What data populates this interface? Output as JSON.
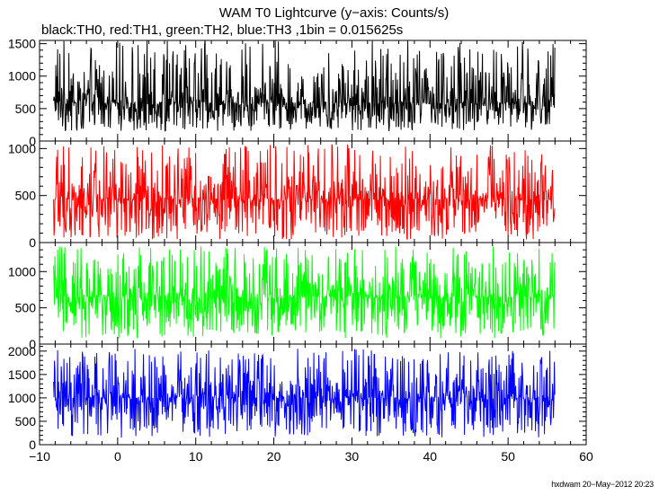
{
  "header": {
    "title": "WAM T0 Lightcurve (y−axis: Counts/s)",
    "subtitle": "black:TH0, red:TH1, green:TH2, blue:TH3 ,1bin = 0.015625s"
  },
  "footer": {
    "stamp": "hxdwam 20−May−2012 20:23"
  },
  "chart_data": [
    {
      "type": "line",
      "title": "",
      "ylabel": "",
      "xlabel": "",
      "color": "#000000",
      "legend_entry": "black:TH0",
      "xlim": [
        -10,
        60
      ],
      "ylim": [
        0,
        1550
      ],
      "yticks": [
        0,
        500,
        1000,
        1500
      ],
      "ytick_labels": [
        "0",
        "500",
        "1000",
        "1500"
      ],
      "series": [
        {
          "x_range": [
            -8.2,
            56.0
          ],
          "baseline": 590,
          "noise_low": 150,
          "noise_high": 1550
        }
      ]
    },
    {
      "type": "line",
      "title": "",
      "ylabel": "",
      "xlabel": "",
      "color": "#ff0000",
      "legend_entry": "red:TH1",
      "xlim": [
        -10,
        60
      ],
      "ylim": [
        0,
        1080
      ],
      "yticks": [
        0,
        500,
        1000
      ],
      "ytick_labels": [
        "0",
        "500",
        "1000"
      ],
      "series": [
        {
          "x_range": [
            -8.2,
            56.0
          ],
          "baseline": 460,
          "noise_low": 30,
          "noise_high": 1050
        }
      ]
    },
    {
      "type": "line",
      "title": "",
      "ylabel": "",
      "xlabel": "",
      "color": "#00ff00",
      "legend_entry": "green:TH2",
      "xlim": [
        -10,
        60
      ],
      "ylim": [
        0,
        1400
      ],
      "yticks": [
        0,
        500,
        1000
      ],
      "ytick_labels": [
        "0",
        "500",
        "1000"
      ],
      "series": [
        {
          "x_range": [
            -8.2,
            56.0
          ],
          "baseline": 650,
          "noise_low": 80,
          "noise_high": 1350
        }
      ]
    },
    {
      "type": "line",
      "title": "",
      "ylabel": "",
      "xlabel": "",
      "color": "#0000ff",
      "legend_entry": "blue:TH3",
      "xlim": [
        -10,
        60
      ],
      "ylim": [
        0,
        2150
      ],
      "yticks": [
        0,
        500,
        1000,
        1500,
        2000
      ],
      "ytick_labels": [
        "0",
        "500",
        "1000",
        "1500",
        "2000"
      ],
      "xticks": [
        -10,
        0,
        10,
        20,
        30,
        40,
        50,
        60
      ],
      "xtick_labels": [
        "−10",
        "0",
        "10",
        "20",
        "30",
        "40",
        "50",
        "60"
      ],
      "series": [
        {
          "x_range": [
            -8.2,
            56.0
          ],
          "baseline": 1000,
          "noise_low": 150,
          "noise_high": 2050
        }
      ]
    }
  ]
}
